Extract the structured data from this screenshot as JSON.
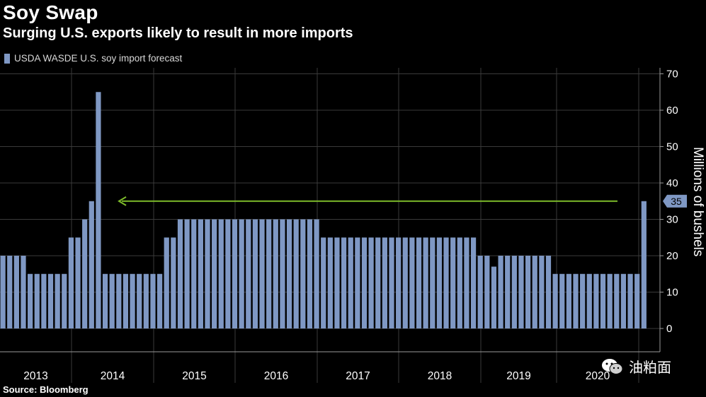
{
  "header": {
    "title": "Soy Swap",
    "subtitle": "Surging U.S. exports likely to result in more imports"
  },
  "legend": {
    "label": "USDA WASDE U.S. soy import forecast"
  },
  "footer": {
    "source": "Source: Bloomberg"
  },
  "watermark": {
    "text": "油粕面"
  },
  "colors": {
    "bar": "#7f98c4",
    "background": "#000000",
    "arrow": "#7dbb2a",
    "grid": "#3a3a3a"
  },
  "chart_data": {
    "type": "bar",
    "ylabel": "Millions of bushels",
    "ylim": [
      0,
      70
    ],
    "yticks": [
      0,
      10,
      20,
      30,
      40,
      50,
      60,
      70
    ],
    "year_labels": [
      "2013",
      "2014",
      "2015",
      "2016",
      "2017",
      "2018",
      "2019",
      "2020"
    ],
    "series": [
      {
        "name": "USDA WASDE U.S. soy import forecast",
        "values": [
          20,
          20,
          20,
          20,
          15,
          15,
          15,
          15,
          15,
          15,
          25,
          25,
          30,
          35,
          65,
          15,
          15,
          15,
          15,
          15,
          15,
          15,
          15,
          15,
          25,
          25,
          30,
          30,
          30,
          30,
          30,
          30,
          30,
          30,
          30,
          30,
          30,
          30,
          30,
          30,
          30,
          30,
          30,
          30,
          30,
          30,
          30,
          25,
          25,
          25,
          25,
          25,
          25,
          25,
          25,
          25,
          25,
          25,
          25,
          25,
          25,
          25,
          25,
          25,
          25,
          25,
          25,
          25,
          25,
          25,
          20,
          20,
          17,
          20,
          20,
          20,
          20,
          20,
          20,
          20,
          20,
          15,
          15,
          15,
          15,
          15,
          15,
          15,
          15,
          15,
          15,
          15,
          15,
          15,
          35
        ]
      }
    ],
    "last_value_label": "35",
    "annotation": "arrow"
  }
}
